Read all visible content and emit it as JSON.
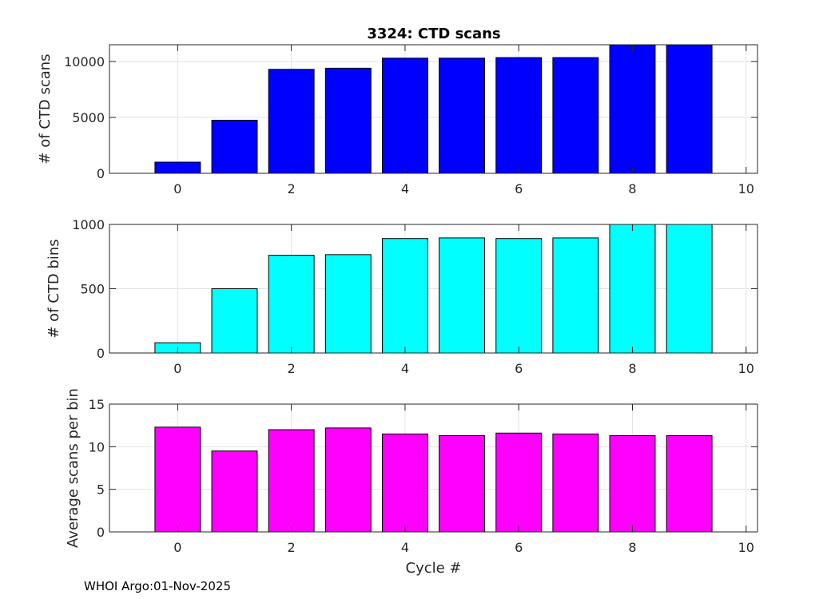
{
  "figure_title": "3324: CTD scans",
  "footer": "WHOI Argo:01-Nov-2025",
  "colors": {
    "panel1_bar": "#0000ff",
    "panel2_bar": "#00ffff",
    "panel3_bar": "#ff00ff"
  },
  "chart_data": [
    {
      "type": "bar",
      "title": "3324: CTD scans",
      "xlabel": "",
      "ylabel": "# of CTD scans",
      "x": [
        0,
        1,
        2,
        3,
        4,
        5,
        6,
        7,
        8,
        9
      ],
      "values": [
        1000,
        4750,
        9300,
        9400,
        10300,
        10300,
        10350,
        10350,
        11500,
        11500
      ],
      "xlim": [
        -1.2,
        10.2
      ],
      "ylim": [
        0,
        11500
      ],
      "xticks": [
        0,
        2,
        4,
        6,
        8,
        10
      ],
      "yticks": [
        0,
        5000,
        10000
      ],
      "grid": true
    },
    {
      "type": "bar",
      "title": "",
      "xlabel": "",
      "ylabel": "# of CTD bins",
      "x": [
        0,
        1,
        2,
        3,
        4,
        5,
        6,
        7,
        8,
        9
      ],
      "values": [
        80,
        500,
        760,
        765,
        890,
        895,
        890,
        895,
        1000,
        1000
      ],
      "xlim": [
        -1.2,
        10.2
      ],
      "ylim": [
        0,
        1000
      ],
      "xticks": [
        0,
        2,
        4,
        6,
        8,
        10
      ],
      "yticks": [
        0,
        500,
        1000
      ],
      "grid": true
    },
    {
      "type": "bar",
      "title": "",
      "xlabel": "Cycle #",
      "ylabel": "Average scans per bin",
      "x": [
        0,
        1,
        2,
        3,
        4,
        5,
        6,
        7,
        8,
        9
      ],
      "values": [
        12.3,
        9.5,
        12.0,
        12.2,
        11.5,
        11.3,
        11.6,
        11.5,
        11.3,
        11.3
      ],
      "xlim": [
        -1.2,
        10.2
      ],
      "ylim": [
        0,
        15
      ],
      "xticks": [
        0,
        2,
        4,
        6,
        8,
        10
      ],
      "yticks": [
        0,
        5,
        10,
        15
      ],
      "grid": true
    }
  ]
}
